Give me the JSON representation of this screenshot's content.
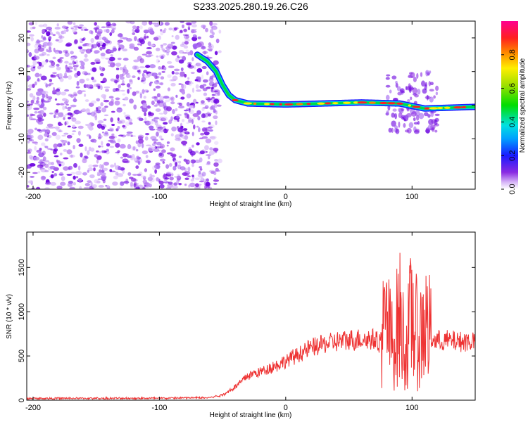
{
  "title": "S233.2025.280.19.26.C26",
  "chart_data": [
    {
      "type": "heatmap",
      "name": "spectrogram",
      "xlabel": "Height of straight line (km)",
      "ylabel": "Frequency (Hz)",
      "xlim": [
        -205,
        150
      ],
      "ylim": [
        -25,
        25
      ],
      "xticks": [
        -200,
        -100,
        0,
        100
      ],
      "yticks": [
        -20,
        -10,
        0,
        10,
        20
      ],
      "colorbar": {
        "label": "Normalized spectral amplitude",
        "range": [
          0,
          1
        ],
        "ticks": [
          0.0,
          0.2,
          0.4,
          0.6,
          0.8
        ],
        "tick_labels": [
          "0.0",
          "0.2",
          "0.4",
          "0.6",
          "0.8"
        ]
      },
      "signal_track": [
        {
          "x": -70,
          "freq": 15
        },
        {
          "x": -62,
          "freq": 13
        },
        {
          "x": -55,
          "freq": 10
        },
        {
          "x": -50,
          "freq": 6
        },
        {
          "x": -45,
          "freq": 3
        },
        {
          "x": -40,
          "freq": 1.5
        },
        {
          "x": -30,
          "freq": 0.5
        },
        {
          "x": 0,
          "freq": 0.2
        },
        {
          "x": 60,
          "freq": 0.8
        },
        {
          "x": 90,
          "freq": 0.5
        },
        {
          "x": 110,
          "freq": -1
        },
        {
          "x": 150,
          "freq": -0.5
        }
      ]
    },
    {
      "type": "line",
      "name": "snr",
      "xlabel": "Height of straight line (km)",
      "ylabel": "SNR (10 * v/v)",
      "xlim": [
        -205,
        150
      ],
      "ylim": [
        0,
        1900
      ],
      "xticks": [
        -200,
        -100,
        0,
        100
      ],
      "yticks": [
        0,
        500,
        1000,
        1500
      ],
      "series": [
        {
          "name": "SNR",
          "color": "#ee3333",
          "x": [
            -205,
            -100,
            -60,
            -50,
            -40,
            -30,
            -20,
            -10,
            0,
            10,
            20,
            30,
            40,
            50,
            60,
            70,
            75,
            80,
            85,
            90,
            95,
            100,
            105,
            110,
            115,
            120,
            130,
            140,
            150
          ],
          "y": [
            20,
            22,
            30,
            60,
            150,
            280,
            320,
            380,
            440,
            520,
            590,
            630,
            660,
            680,
            690,
            690,
            650,
            900,
            400,
            1100,
            300,
            1200,
            500,
            1000,
            680,
            670,
            670,
            665,
            670
          ]
        }
      ]
    }
  ]
}
